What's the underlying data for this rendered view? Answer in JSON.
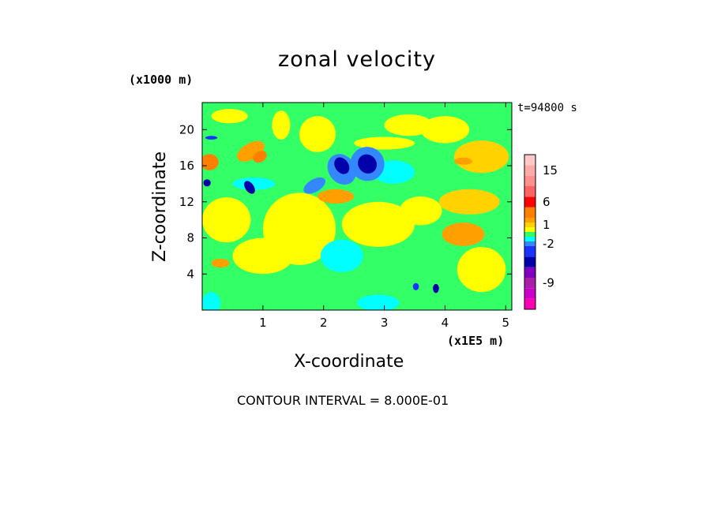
{
  "chart_data": {
    "type": "heatmap",
    "title": "zonal velocity",
    "xlabel": "X-coordinate",
    "ylabel": "Z-coordinate",
    "x_unit": "(x1E5 m)",
    "z_unit": "(x1000 m)",
    "time_label": "t=94800 s",
    "contour_interval_text": "CONTOUR INTERVAL = 8.000E-01",
    "xlim": [
      0,
      5.1
    ],
    "ylim": [
      0,
      23
    ],
    "x_ticks": [
      {
        "value": 1,
        "label": "1"
      },
      {
        "value": 2,
        "label": "2"
      },
      {
        "value": 3,
        "label": "3"
      },
      {
        "value": 4,
        "label": "4"
      },
      {
        "value": 5,
        "label": "5"
      }
    ],
    "y_ticks": [
      {
        "value": 4,
        "label": "4"
      },
      {
        "value": 8,
        "label": "8"
      },
      {
        "value": 12,
        "label": "12"
      },
      {
        "value": 16,
        "label": "16"
      },
      {
        "value": 20,
        "label": "20"
      }
    ],
    "colorbar": {
      "bands": [
        {
          "value": -13,
          "color": "#ff00b4"
        },
        {
          "value": -11,
          "color": "#cc00cc"
        },
        {
          "value": -9,
          "color": "#aa1eaa"
        },
        {
          "value": -7,
          "color": "#7f00bf"
        },
        {
          "value": -5,
          "color": "#0000aa"
        },
        {
          "value": -3,
          "color": "#1a33ff"
        },
        {
          "value": -2,
          "color": "#3388ff"
        },
        {
          "value": -1,
          "color": "#00ffff"
        },
        {
          "value": 0,
          "color": "#33ff66"
        },
        {
          "value": 0.5,
          "color": "#ffff00"
        },
        {
          "value": 1,
          "color": "#ffd200"
        },
        {
          "value": 2,
          "color": "#ffa000"
        },
        {
          "value": 4,
          "color": "#ff7f00"
        },
        {
          "value": 6,
          "color": "#ff0000"
        },
        {
          "value": 9,
          "color": "#ff6464"
        },
        {
          "value": 12,
          "color": "#ff9090"
        },
        {
          "value": 15,
          "color": "#ffaaaa"
        },
        {
          "value": 18,
          "color": "#ffc8c8"
        }
      ],
      "labels": [
        {
          "value": 15,
          "label": "15"
        },
        {
          "value": 6,
          "label": "6"
        },
        {
          "value": 1,
          "label": "1"
        },
        {
          "value": -2,
          "label": "-2"
        },
        {
          "value": -9,
          "label": "-9"
        }
      ]
    },
    "features": [
      {
        "kind": "blob",
        "x": 2.72,
        "z": 16.2,
        "rx": 0.15,
        "rz": 1.1,
        "angle": -40,
        "value": -5
      },
      {
        "kind": "blob",
        "x": 2.72,
        "z": 16.2,
        "rx": 0.28,
        "rz": 1.9,
        "angle": -40,
        "value": -2
      },
      {
        "kind": "blob",
        "x": 2.3,
        "z": 16.0,
        "rx": 0.11,
        "rz": 1.0,
        "angle": -35,
        "value": -5
      },
      {
        "kind": "blob",
        "x": 2.3,
        "z": 15.6,
        "rx": 0.22,
        "rz": 1.8,
        "angle": -35,
        "value": -2
      },
      {
        "kind": "blob",
        "x": 3.15,
        "z": 15.3,
        "rx": 0.35,
        "rz": 1.3,
        "angle": 0,
        "value": -1
      },
      {
        "kind": "blob",
        "x": 0.85,
        "z": 14.0,
        "rx": 0.35,
        "rz": 0.7,
        "angle": 0,
        "value": -1
      },
      {
        "kind": "blob",
        "x": 0.78,
        "z": 13.6,
        "rx": 0.07,
        "rz": 0.8,
        "angle": -35,
        "value": -5
      },
      {
        "kind": "blob",
        "x": 1.85,
        "z": 13.8,
        "rx": 0.2,
        "rz": 0.7,
        "angle": -30,
        "value": -2
      },
      {
        "kind": "blob",
        "x": 0.12,
        "z": 16.4,
        "rx": 0.15,
        "rz": 0.9,
        "angle": 0,
        "value": 4
      },
      {
        "kind": "blob",
        "x": 0.12,
        "z": 16.4,
        "rx": 0.08,
        "rz": 0.5,
        "angle": 0,
        "value": 4
      },
      {
        "kind": "blob",
        "x": 0.8,
        "z": 17.6,
        "rx": 0.25,
        "rz": 0.9,
        "angle": -30,
        "value": 2
      },
      {
        "kind": "blob",
        "x": 0.95,
        "z": 17.0,
        "rx": 0.12,
        "rz": 0.6,
        "angle": -30,
        "value": 4
      },
      {
        "kind": "blob",
        "x": 0.08,
        "z": 14.1,
        "rx": 0.06,
        "rz": 0.4,
        "angle": 0,
        "value": -5
      },
      {
        "kind": "blob",
        "x": 0.15,
        "z": 19.1,
        "rx": 0.1,
        "rz": 0.2,
        "angle": 0,
        "value": -3
      },
      {
        "kind": "blob",
        "x": 2.2,
        "z": 12.6,
        "rx": 0.3,
        "rz": 0.8,
        "angle": 0,
        "value": 2
      },
      {
        "kind": "blob",
        "x": 4.6,
        "z": 17.0,
        "rx": 0.45,
        "rz": 1.8,
        "angle": 0,
        "value": 1
      },
      {
        "kind": "blob",
        "x": 4.3,
        "z": 16.5,
        "rx": 0.15,
        "rz": 0.4,
        "angle": 0,
        "value": 2
      },
      {
        "kind": "blob",
        "x": 0.3,
        "z": 5.2,
        "rx": 0.15,
        "rz": 0.5,
        "angle": 0,
        "value": 2
      },
      {
        "kind": "blob",
        "x": 4.4,
        "z": 12.0,
        "rx": 0.5,
        "rz": 1.4,
        "angle": 0,
        "value": 1
      },
      {
        "kind": "blob",
        "x": 3.52,
        "z": 2.6,
        "rx": 0.05,
        "rz": 0.4,
        "angle": 0,
        "value": -3
      },
      {
        "kind": "blob",
        "x": 3.85,
        "z": 2.4,
        "rx": 0.05,
        "rz": 0.5,
        "angle": 0,
        "value": -5
      },
      {
        "kind": "blob",
        "x": 2.3,
        "z": 6.0,
        "rx": 0.35,
        "rz": 1.8,
        "angle": 0,
        "value": -1
      },
      {
        "kind": "blob",
        "x": 0.15,
        "z": 0.8,
        "rx": 0.15,
        "rz": 1.2,
        "angle": 0,
        "value": -1
      },
      {
        "kind": "blob",
        "x": 2.9,
        "z": 0.8,
        "rx": 0.35,
        "rz": 0.9,
        "angle": 0,
        "value": -1
      },
      {
        "kind": "blob",
        "x": 4.3,
        "z": 8.4,
        "rx": 0.35,
        "rz": 1.3,
        "angle": 0,
        "value": 2
      },
      {
        "kind": "blob",
        "x": 0.4,
        "z": 10.0,
        "rx": 0.4,
        "rz": 2.5,
        "angle": 0,
        "value": 0.5
      },
      {
        "kind": "blob",
        "x": 1.6,
        "z": 9.0,
        "rx": 0.6,
        "rz": 4.0,
        "angle": 0,
        "value": 0.5
      },
      {
        "kind": "blob",
        "x": 2.9,
        "z": 9.5,
        "rx": 0.6,
        "rz": 2.5,
        "angle": 0,
        "value": 0.5
      },
      {
        "kind": "blob",
        "x": 4.6,
        "z": 4.5,
        "rx": 0.4,
        "rz": 2.5,
        "angle": 0,
        "value": 0.5
      },
      {
        "kind": "blob",
        "x": 3.4,
        "z": 20.5,
        "rx": 0.4,
        "rz": 1.2,
        "angle": 0,
        "value": 0.5
      },
      {
        "kind": "blob",
        "x": 0.45,
        "z": 21.5,
        "rx": 0.3,
        "rz": 0.8,
        "angle": 0,
        "value": 0.5
      },
      {
        "kind": "blob",
        "x": 1.3,
        "z": 20.5,
        "rx": 0.15,
        "rz": 1.6,
        "angle": 0,
        "value": 0.5
      },
      {
        "kind": "blob",
        "x": 1.9,
        "z": 19.5,
        "rx": 0.3,
        "rz": 2.0,
        "angle": -20,
        "value": 0.5
      },
      {
        "kind": "blob",
        "x": 4.0,
        "z": 20.0,
        "rx": 0.4,
        "rz": 1.5,
        "angle": 0,
        "value": 0.5
      },
      {
        "kind": "blob",
        "x": 3.0,
        "z": 18.5,
        "rx": 0.5,
        "rz": 0.7,
        "angle": 0,
        "value": 0.5
      },
      {
        "kind": "blob",
        "x": 1.0,
        "z": 6.0,
        "rx": 0.5,
        "rz": 2.0,
        "angle": 0,
        "value": 0.5
      },
      {
        "kind": "blob",
        "x": 3.6,
        "z": 11.0,
        "rx": 0.35,
        "rz": 1.6,
        "angle": 0,
        "value": 0.5
      }
    ]
  }
}
